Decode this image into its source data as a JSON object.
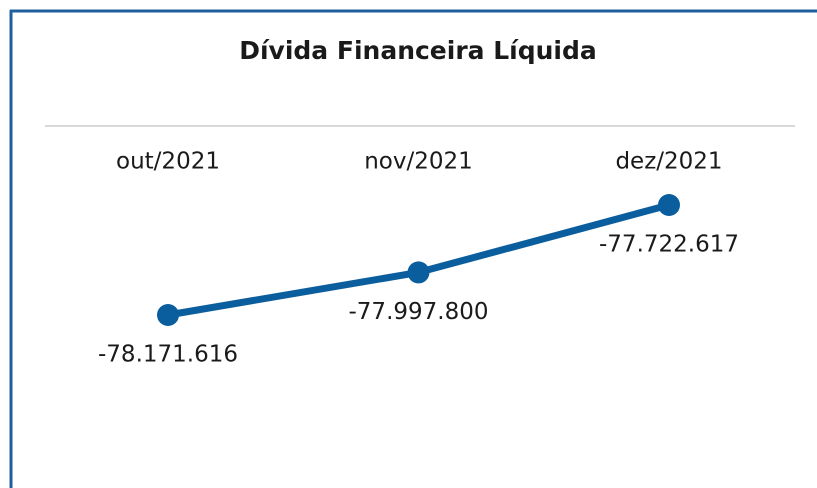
{
  "chart_data": {
    "type": "line",
    "title": "Dívida Financeira Líquida",
    "categories": [
      "out/2021",
      "nov/2021",
      "dez/2021"
    ],
    "values": [
      -78171616,
      -77997800,
      -77722617
    ],
    "value_labels": [
      "-78.171.616",
      "-77.997.800",
      "-77.722.617"
    ],
    "color": "#0b5e9e"
  }
}
